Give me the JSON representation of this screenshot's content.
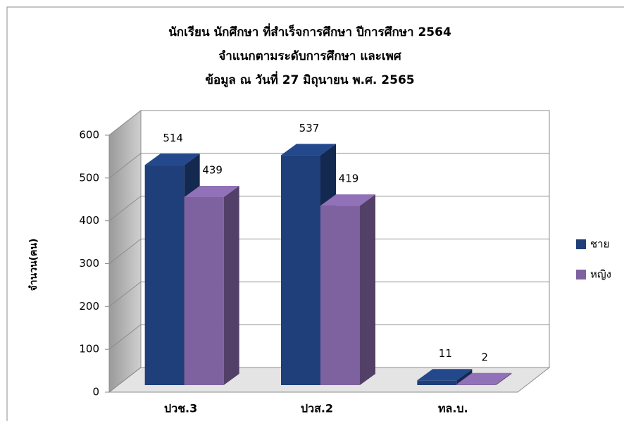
{
  "chart_data": {
    "type": "bar3d",
    "title": [
      "นักเรียน นักศึกษา  ที่สำเร็จการศึกษา ปีการศึกษา 2564",
      "จำแนกตามระดับการศึกษา และเพศ",
      "ข้อมูล ณ วันที่ 27  มิถุนายน พ.ศ. 2565"
    ],
    "y_label": "จำนวน(คน)",
    "categories": [
      "ปวช.3",
      "ปวส.2",
      "ทล.บ."
    ],
    "series": [
      {
        "name": "ชาย",
        "color": "#1f3f7a",
        "values": [
          514,
          537,
          11
        ]
      },
      {
        "name": "หญิง",
        "color": "#7e62a0",
        "values": [
          439,
          419,
          2
        ]
      }
    ],
    "ylim": [
      0,
      600
    ],
    "yticks": [
      0,
      100,
      200,
      300,
      400,
      500,
      600
    ],
    "grid": true,
    "legend": "right",
    "data_labels": true
  }
}
